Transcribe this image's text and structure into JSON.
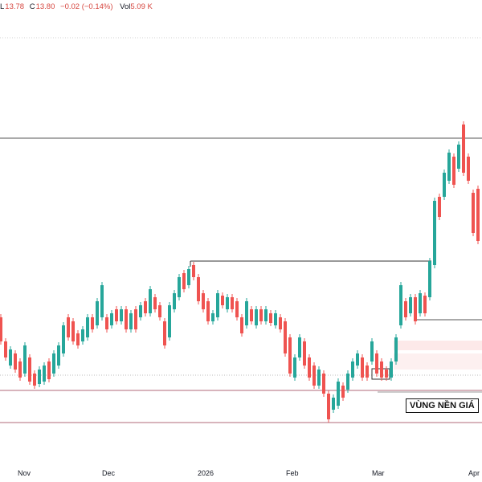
{
  "legend": {
    "low": "13.78",
    "close_label": "C",
    "close": "13.80",
    "change": "−0.02 (−0.14%)",
    "vol_label": "Vol",
    "vol": "5.09 K"
  },
  "annotation": {
    "zone_label": "VÙNG NỀN GIÁ"
  },
  "chart_data": {
    "type": "candlestick",
    "x_tick_labels": [
      "Nov",
      "Dec",
      "2026",
      "Feb",
      "Mar",
      "Apr"
    ],
    "colors": {
      "up": "#26a69a",
      "down": "#ef5350",
      "lines": "#131722"
    },
    "grid": false
  }
}
